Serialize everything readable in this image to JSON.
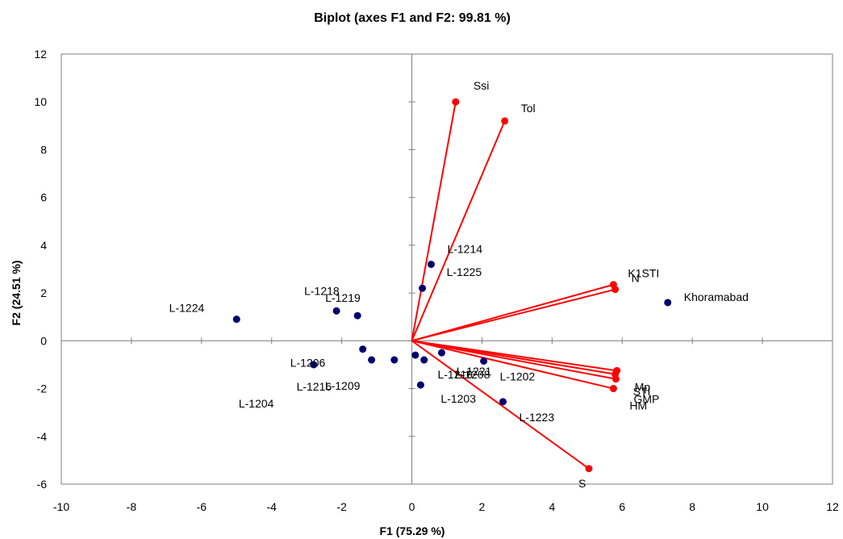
{
  "chart_data": {
    "type": "scatter",
    "title": "Biplot (axes F1 and F2: 99.81 %)",
    "xlabel": "F1 (75.29 %)",
    "ylabel": "F2 (24.51 %)",
    "xlim": [
      -10,
      12
    ],
    "ylim": [
      -6,
      12
    ],
    "x_ticks": [
      -10,
      -8,
      -6,
      -4,
      -2,
      0,
      2,
      4,
      6,
      8,
      10,
      12
    ],
    "y_ticks": [
      -6,
      -4,
      -2,
      0,
      2,
      4,
      6,
      8,
      10,
      12
    ],
    "grid": false,
    "legend": "none",
    "observations": {
      "color": "#00006e",
      "points": [
        {
          "label": "Khoramabad",
          "x": 7.3,
          "y": 1.6
        },
        {
          "label": "L-1224",
          "x": -5.0,
          "y": 0.9
        },
        {
          "label": "L-1218",
          "x": -2.15,
          "y": 1.25
        },
        {
          "label": "L-1219",
          "x": -1.55,
          "y": 1.05
        },
        {
          "label": "L-1214",
          "x": 0.55,
          "y": 3.2
        },
        {
          "label": "L-1225",
          "x": 0.3,
          "y": 2.2
        },
        {
          "label": "L-1206",
          "x": -1.4,
          "y": -0.35
        },
        {
          "label": "L-1204",
          "x": -2.8,
          "y": -1.0
        },
        {
          "label": "L-1216",
          "x": -1.15,
          "y": -0.8
        },
        {
          "label": "L-1209",
          "x": -0.5,
          "y": -0.8
        },
        {
          "label": "L-1208",
          "x": 0.1,
          "y": -0.6
        },
        {
          "label": "L-1221",
          "x": 0.35,
          "y": -0.8
        },
        {
          "label": "L-1210",
          "x": 0.85,
          "y": -0.5
        },
        {
          "label": "L-1202",
          "x": 2.05,
          "y": -0.85
        },
        {
          "label": "L-1203",
          "x": 0.25,
          "y": -1.85
        },
        {
          "label": "L-1223",
          "x": 2.6,
          "y": -2.55
        }
      ]
    },
    "variables": {
      "color": "#ff0000",
      "vectors": [
        {
          "label": "Ssi",
          "x": 1.25,
          "y": 10.0
        },
        {
          "label": "Tol",
          "x": 2.65,
          "y": 9.2
        },
        {
          "label": "K1STI",
          "x": 5.75,
          "y": 2.35
        },
        {
          "label": "N",
          "x": 5.8,
          "y": 2.15
        },
        {
          "label": "Mp",
          "x": 5.85,
          "y": -1.25
        },
        {
          "label": "STI",
          "x": 5.8,
          "y": -1.4
        },
        {
          "label": "GMP",
          "x": 5.82,
          "y": -1.6
        },
        {
          "label": "HM",
          "x": 5.75,
          "y": -2.0
        },
        {
          "label": "S",
          "x": 5.05,
          "y": -5.35
        }
      ]
    }
  }
}
